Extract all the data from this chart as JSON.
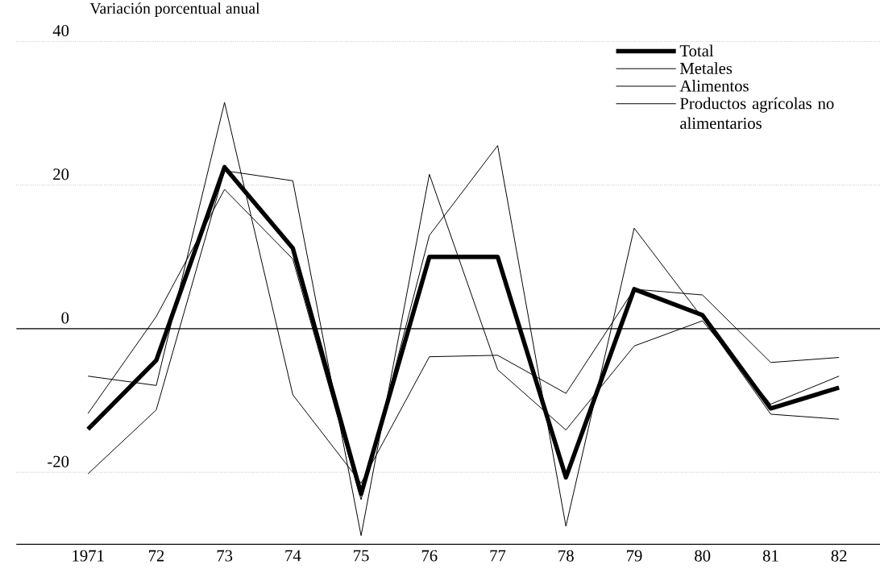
{
  "chart_data": {
    "type": "line",
    "ylabel": "Variación porcentual anual",
    "x": [
      1971,
      1972,
      1973,
      1974,
      1975,
      1976,
      1977,
      1978,
      1979,
      1980,
      1981,
      1982
    ],
    "xlim": [
      1969.95,
      1982.6
    ],
    "xticks": [
      {
        "value": 1971,
        "label": "1971"
      },
      {
        "value": 1972,
        "label": "72"
      },
      {
        "value": 1973,
        "label": "73"
      },
      {
        "value": 1974,
        "label": "74"
      },
      {
        "value": 1975,
        "label": "75"
      },
      {
        "value": 1976,
        "label": "76"
      },
      {
        "value": 1977,
        "label": "77"
      },
      {
        "value": 1978,
        "label": "78"
      },
      {
        "value": 1979,
        "label": "79"
      },
      {
        "value": 1980,
        "label": "80"
      },
      {
        "value": 1981,
        "label": "81"
      },
      {
        "value": 1982,
        "label": "82"
      }
    ],
    "ylim": [
      -30,
      40
    ],
    "yticks": [
      -20,
      0,
      20,
      40
    ],
    "grid": "y",
    "legend": "top right",
    "marker": "none",
    "line_style": "solid",
    "ref_lines": [
      {
        "axis": "y",
        "value": 0,
        "color": "#000000",
        "line_style": "solid"
      }
    ],
    "series": [
      {
        "name": "Total",
        "color": "#000000",
        "values": [
          -14,
          -4.4,
          22.5,
          11.2,
          -23,
          10,
          10,
          -20.7,
          5.5,
          1.9,
          -11.1,
          -8.2
        ]
      },
      {
        "name": "Metales",
        "color": "#000000",
        "values": [
          -6.6,
          -7.9,
          31.5,
          -9.2,
          -21.5,
          -3.9,
          -3.7,
          -9,
          5.5,
          4.7,
          -4.7,
          -4
        ]
      },
      {
        "name": "Alimentos",
        "color": "#000000",
        "values": [
          -11.8,
          1.7,
          19.4,
          9.7,
          -23.8,
          13,
          25.5,
          -27.5,
          14,
          1.5,
          -11.9,
          -12.6
        ]
      },
      {
        "name": "Productos agrícolas no alimentarios",
        "color": "#000000",
        "values": [
          -20.2,
          -11.3,
          22,
          20.6,
          -28.8,
          21.5,
          -5.7,
          -14.1,
          -2.4,
          1.1,
          -10.5,
          -6.6
        ]
      }
    ]
  }
}
